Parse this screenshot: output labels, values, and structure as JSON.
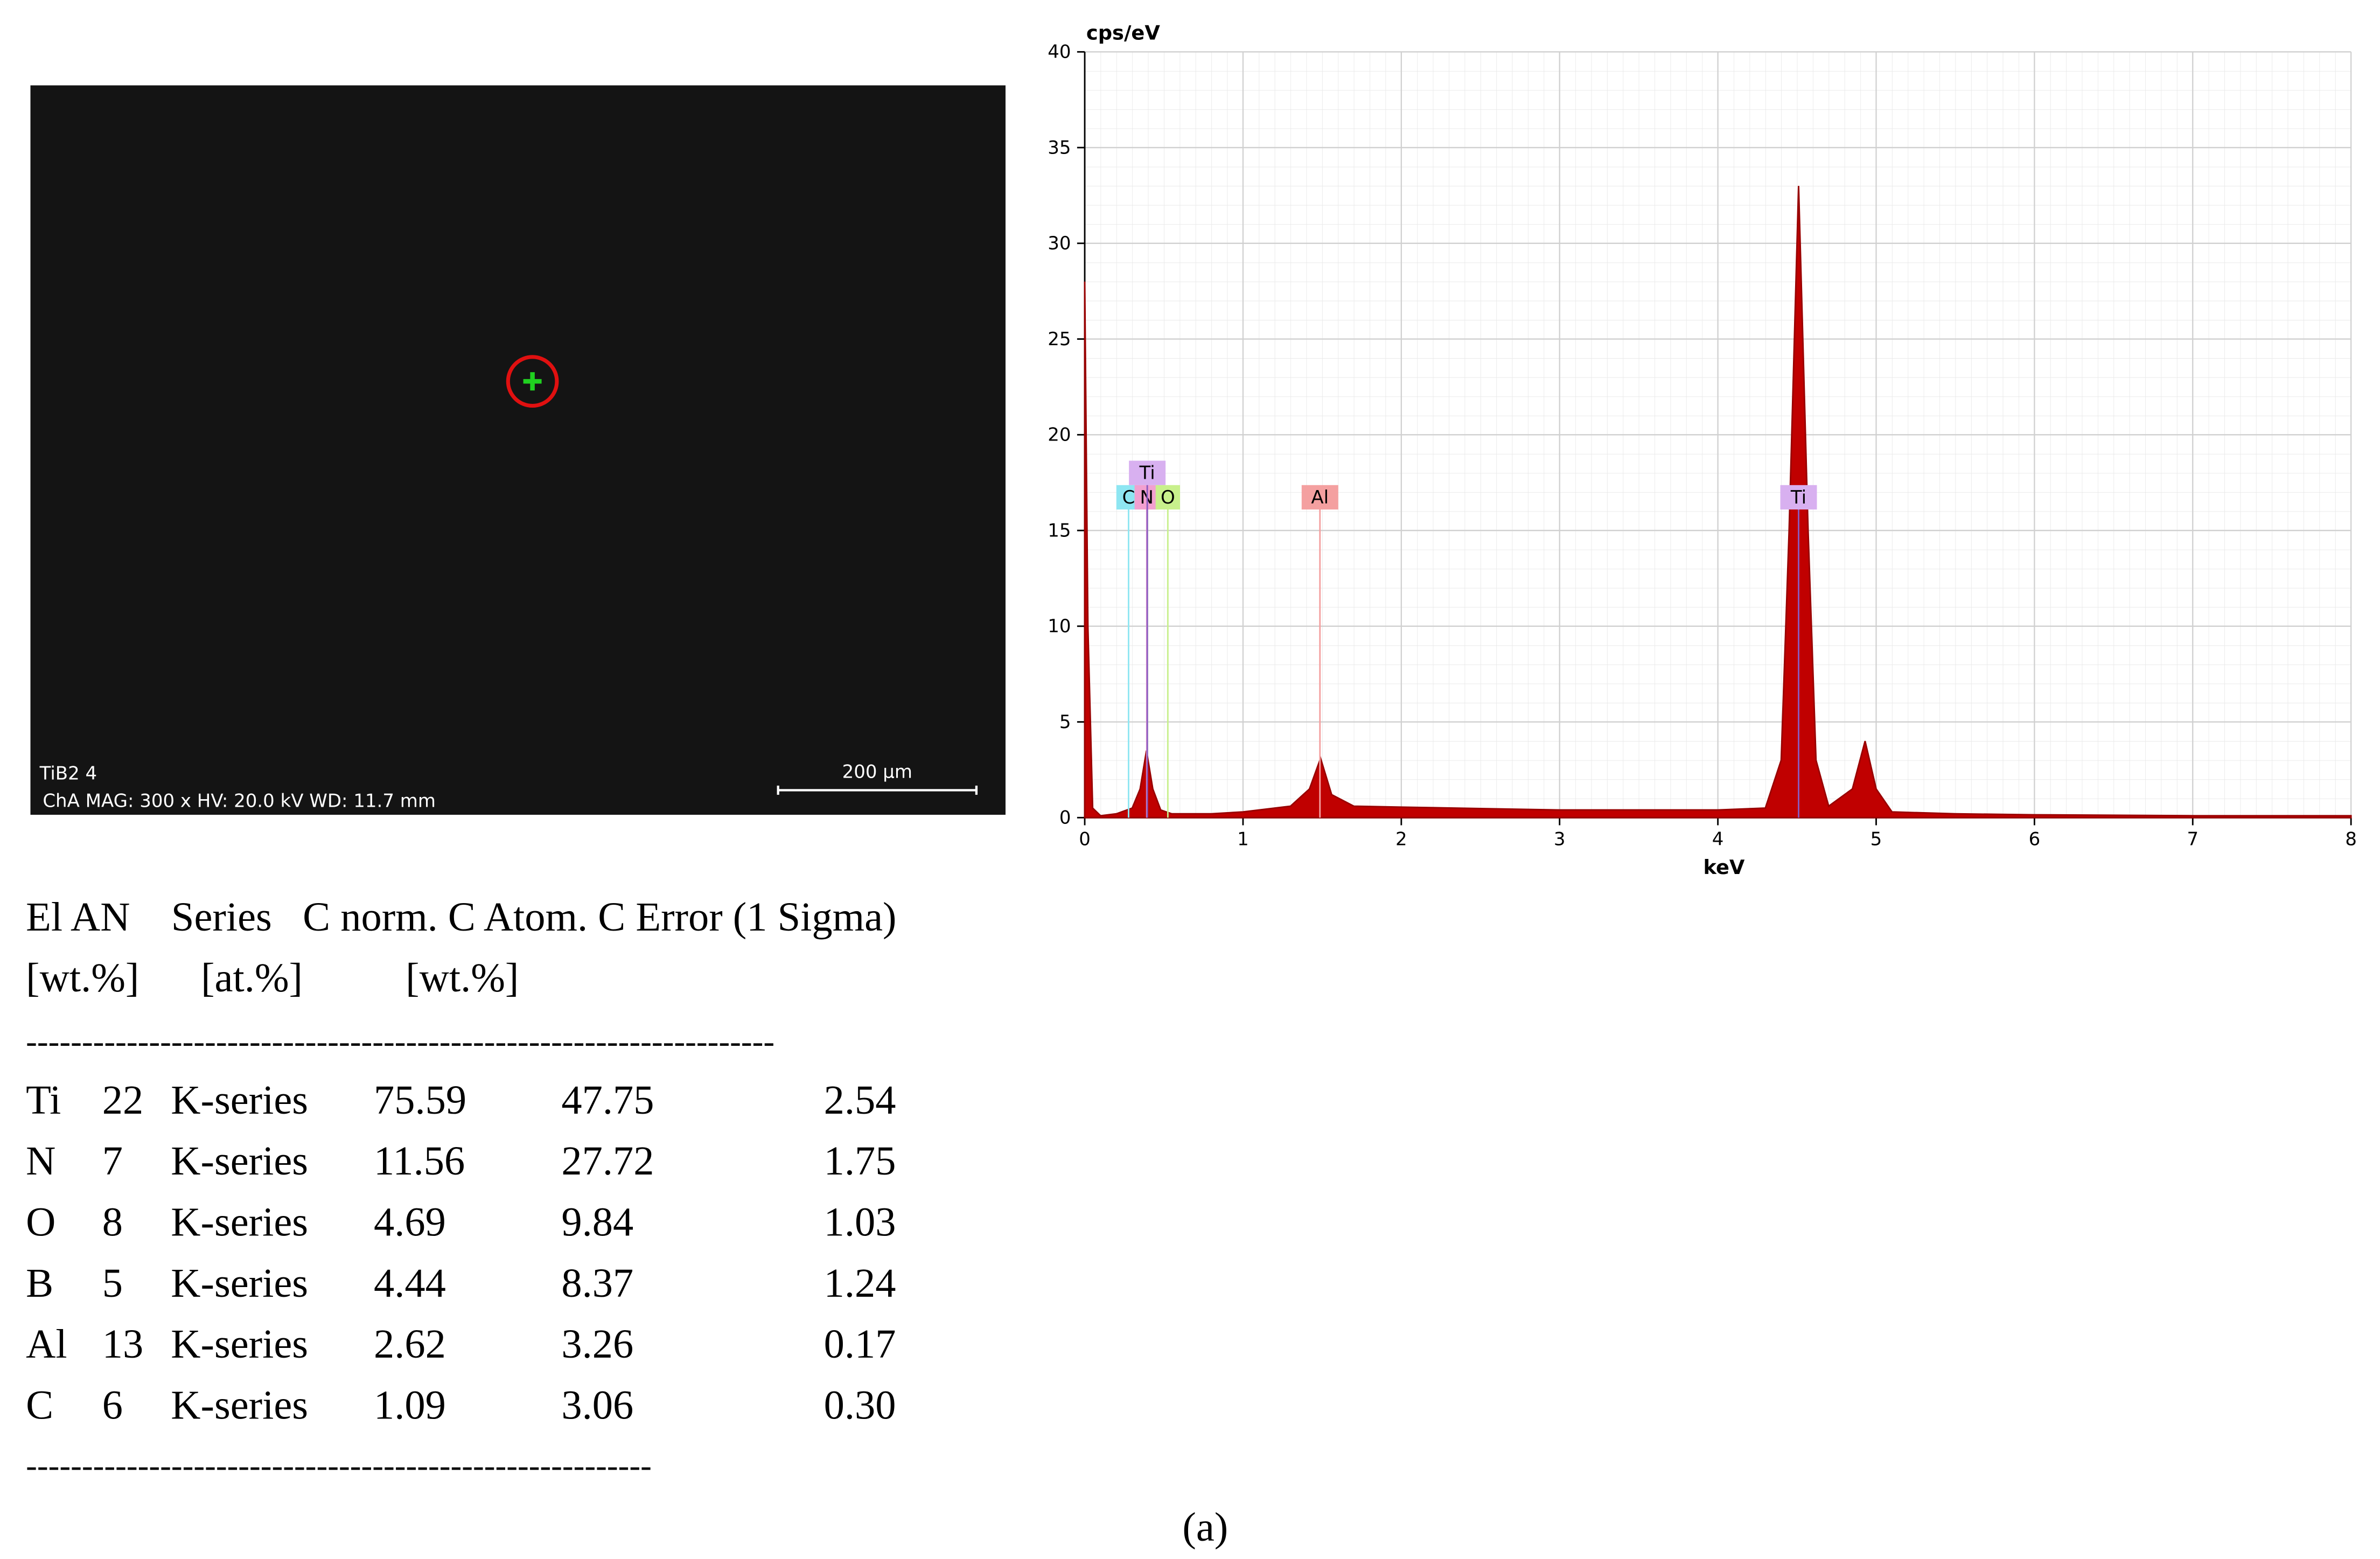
{
  "sem_image": {
    "sample": "TiB2 4",
    "info": "ChA MAG: 300 x HV: 20.0 kV WD: 11.7 mm",
    "scale_bar": "200 µm"
  },
  "chart_data": {
    "type": "area",
    "y_label": "cps/eV",
    "x_label": "keV",
    "color": "#c00000",
    "grid": true,
    "x": [
      0,
      0.02,
      0.05,
      0.1,
      0.2,
      0.3,
      0.35,
      0.39,
      0.43,
      0.48,
      0.55,
      0.8,
      1.0,
      1.3,
      1.42,
      1.49,
      1.56,
      1.7,
      2.0,
      3.0,
      4.0,
      4.3,
      4.4,
      4.45,
      4.51,
      4.57,
      4.62,
      4.7,
      4.85,
      4.93,
      5.0,
      5.1,
      5.5,
      6,
      7,
      8
    ],
    "values": [
      28,
      10,
      0.5,
      0.1,
      0.2,
      0.5,
      1.5,
      3.5,
      1.5,
      0.4,
      0.2,
      0.2,
      0.3,
      0.6,
      1.5,
      3.1,
      1.2,
      0.6,
      0.55,
      0.4,
      0.4,
      0.5,
      3,
      15,
      33,
      15,
      3,
      0.6,
      1.5,
      4,
      1.5,
      0.3,
      0.2,
      0.15,
      0.1,
      0.1
    ],
    "xlim": [
      0,
      8
    ],
    "xticks": [
      0,
      1,
      2,
      3,
      4,
      5,
      6,
      7,
      8
    ],
    "ylim": [
      0,
      40
    ],
    "yticks": [
      0,
      5,
      10,
      15,
      20,
      25,
      30,
      35,
      40
    ],
    "markers": [
      {
        "label": "C",
        "energy": 0.277,
        "color": "#8ee6f2"
      },
      {
        "label": "N",
        "energy": 0.392,
        "color": "#f2a0d0"
      },
      {
        "label": "Ti",
        "energy": 0.395,
        "color": "#d8b0f0"
      },
      {
        "label": "O",
        "energy": 0.525,
        "color": "#c8f08c"
      },
      {
        "label": "Al",
        "energy": 1.486,
        "color": "#f4a0a0"
      },
      {
        "label": "Ti",
        "energy": 4.51,
        "color": "#d8b0f0"
      }
    ]
  },
  "table": {
    "header": [
      "El AN    Series   C norm. C Atom. C Error (1 Sigma)",
      "[wt.%]      [at.%]          [wt.%]"
    ],
    "separator_top": "-------------------------------------------------------------------",
    "rows": [
      [
        "Ti",
        "22",
        "K-series",
        "75.59",
        "47.75",
        "2.54"
      ],
      [
        "N",
        "7",
        "K-series",
        "11.56",
        "27.72",
        "1.75"
      ],
      [
        "O",
        "8",
        "K-series",
        "4.69",
        "9.84",
        "1.03"
      ],
      [
        "B",
        "5",
        "K-series",
        "4.44",
        "8.37",
        "1.24"
      ],
      [
        "Al",
        "13",
        "K-series",
        "2.62",
        "3.26",
        "0.17"
      ],
      [
        "C",
        "6",
        "K-series",
        "1.09",
        "3.06",
        "0.30"
      ]
    ],
    "separator_bottom": "--------------------------------------------------------"
  },
  "caption": "(a)"
}
